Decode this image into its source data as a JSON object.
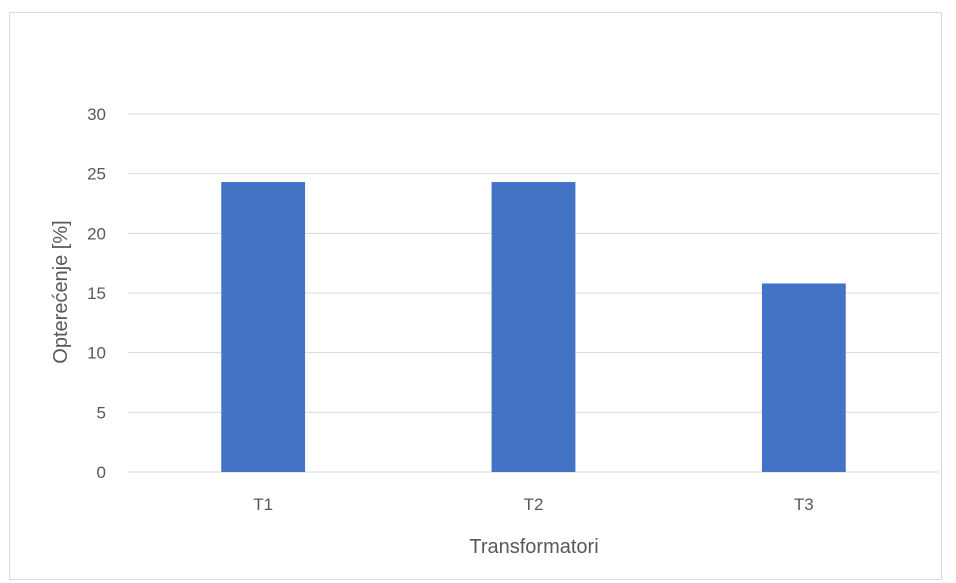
{
  "chart_data": {
    "type": "bar",
    "title": "",
    "categories": [
      "T1",
      "T2",
      "T3"
    ],
    "values": [
      24.3,
      24.3,
      15.8
    ],
    "xlabel": "Transformatori",
    "ylabel": "Opterećenje [%]",
    "ylim": [
      0,
      30
    ],
    "yticks": [
      "0",
      "5",
      "10",
      "15",
      "20",
      "25",
      "30"
    ],
    "grid": true,
    "legend": "none",
    "bar_color": "#4472C4",
    "grid_color": "#d9d9d9"
  }
}
